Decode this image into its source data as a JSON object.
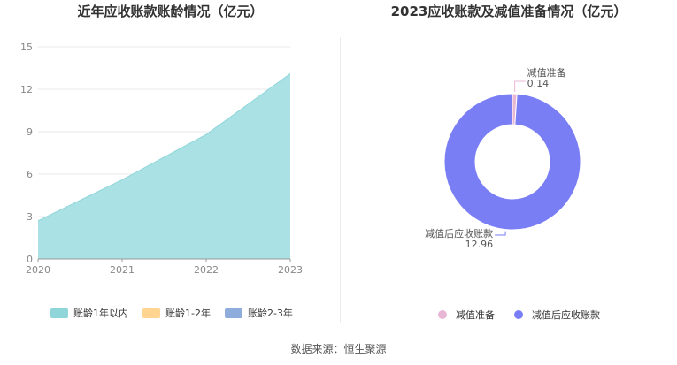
{
  "chart_data": [
    {
      "type": "area",
      "title": "近年应收账款账龄情况（亿元）",
      "x": [
        "2020",
        "2021",
        "2022",
        "2023"
      ],
      "series": [
        {
          "name": "账龄1年以内",
          "values": [
            2.7,
            5.6,
            8.8,
            13.1
          ],
          "color": "#8fd6db"
        },
        {
          "name": "账龄1-2年",
          "values": [
            0,
            0,
            0,
            0
          ],
          "color": "#ffd591"
        },
        {
          "name": "账龄2-3年",
          "values": [
            0,
            0,
            0,
            0
          ],
          "color": "#8eaddc"
        }
      ],
      "ylim": [
        0,
        15
      ],
      "yticks": [
        "0",
        "3",
        "6",
        "9",
        "12",
        "15"
      ],
      "grid": true,
      "legend": "bottom"
    },
    {
      "type": "pie",
      "title": "2023应收账款及减值准备情况（亿元）",
      "slices": [
        {
          "name": "减值准备",
          "value": 0.14,
          "label": "0.14",
          "color": "#e8b7d6"
        },
        {
          "name": "减值后应收账款",
          "value": 12.96,
          "label": "12.96",
          "color": "#7a7ef5"
        }
      ],
      "legend": "bottom"
    }
  ],
  "footer": {
    "source": "数据来源：恒生聚源"
  }
}
